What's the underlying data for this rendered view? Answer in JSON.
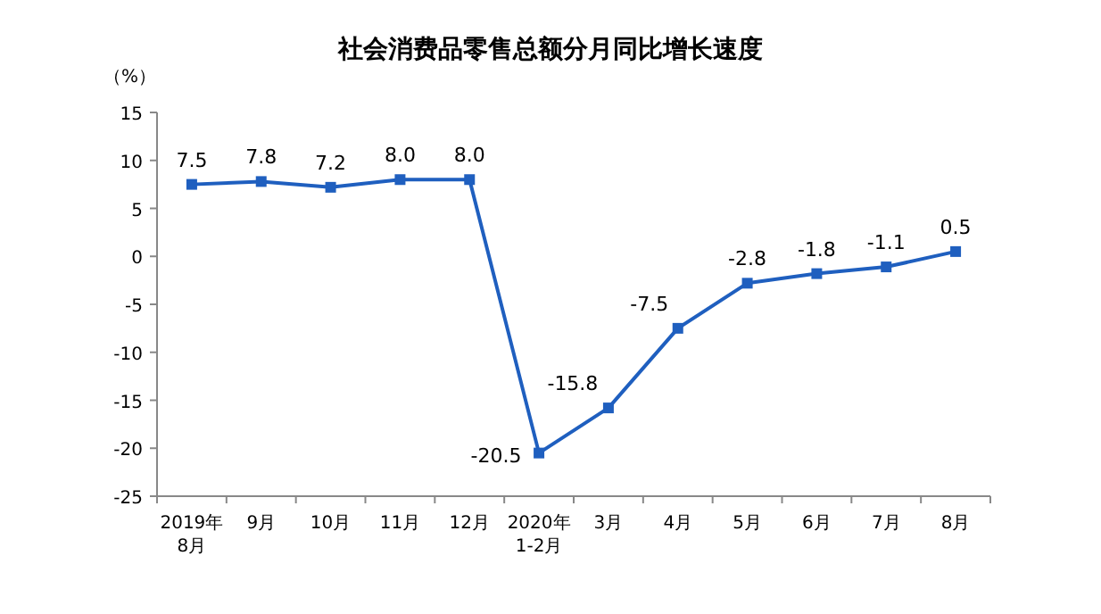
{
  "chart_data": {
    "type": "line",
    "title": "社会消费品零售总额分月同比增长速度",
    "ylabel": "（%）",
    "categories": [
      "2019年\n8月",
      "9月",
      "10月",
      "11月",
      "12月",
      "2020年\n1-2月",
      "3月",
      "4月",
      "5月",
      "6月",
      "7月",
      "8月"
    ],
    "values": [
      7.5,
      7.8,
      7.2,
      8.0,
      8.0,
      -20.5,
      -15.8,
      -7.5,
      -2.8,
      -1.8,
      -1.1,
      0.5
    ],
    "value_labels": [
      "7.5",
      "7.8",
      "7.2",
      "8.0",
      "8.0",
      "-20.5",
      "-15.8",
      "-7.5",
      "-2.8",
      "-1.8",
      "-1.1",
      "0.5"
    ],
    "color": "#1f5fbf",
    "marker": "square",
    "ylim": [
      -25,
      15
    ],
    "yticks": [
      -25,
      -20,
      -15,
      -10,
      -5,
      0,
      5,
      10,
      15
    ]
  }
}
